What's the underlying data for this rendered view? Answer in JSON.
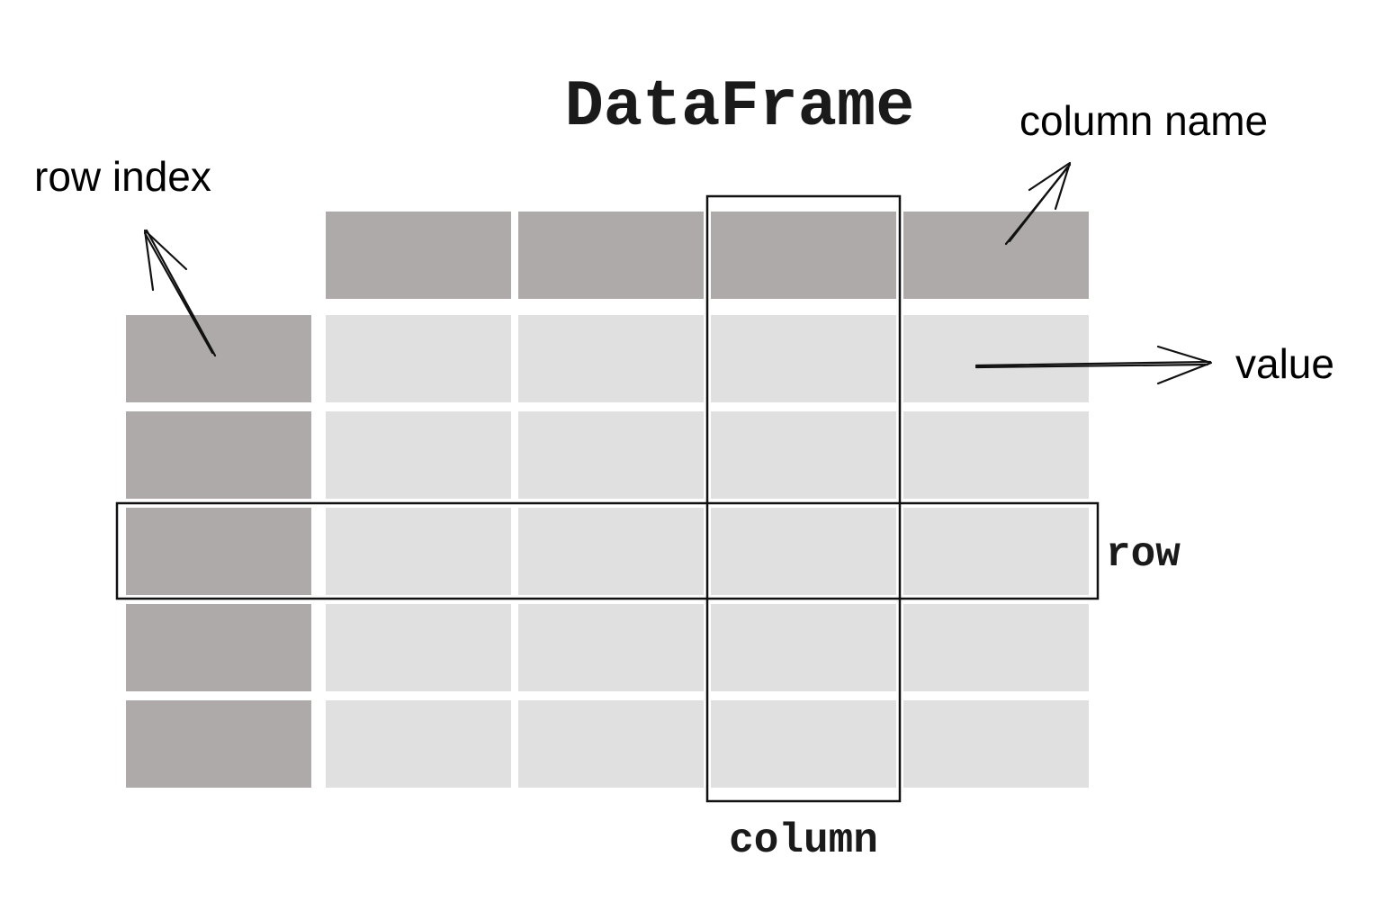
{
  "title": "DataFrame",
  "labels": {
    "column_name": "column name",
    "row_index": "row index",
    "value": "value",
    "row": "row",
    "column": "column"
  },
  "grid": {
    "header_cells": 4,
    "data_rows": 5,
    "data_columns": 4,
    "highlighted_row": 3,
    "highlighted_column": 3
  },
  "colors": {
    "index_fill": "#aeaaa9",
    "value_fill": "#e1e0e1",
    "outline": "#111111",
    "background": "#ffffff"
  }
}
